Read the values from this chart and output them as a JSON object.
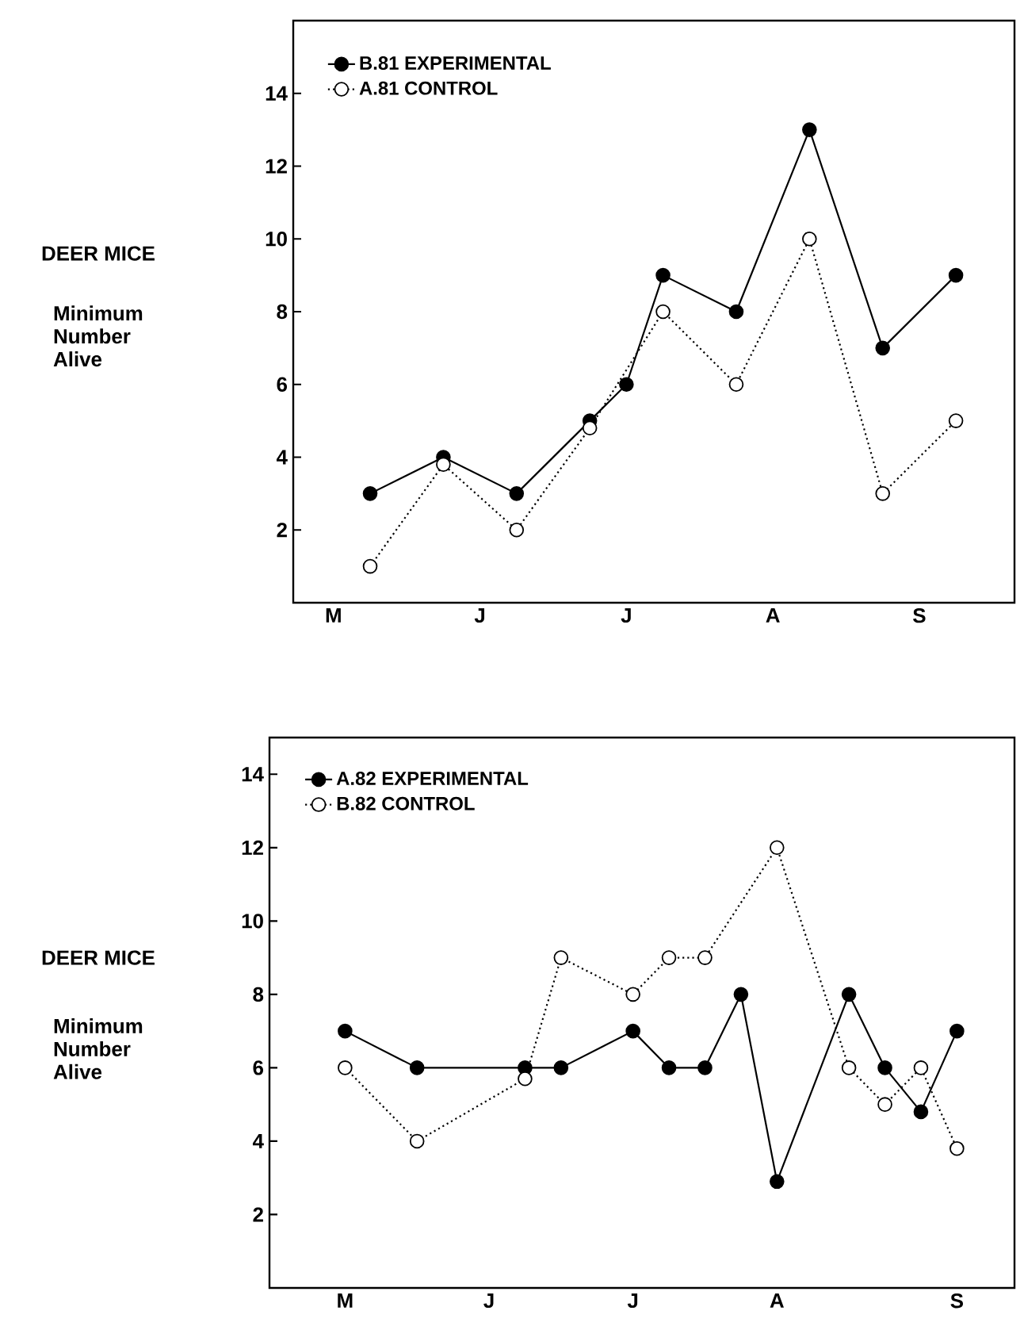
{
  "chart_data": [
    {
      "type": "line",
      "ylabel": "DEER MICE",
      "annotations": [
        "Minimum Number Alive"
      ],
      "categories": [
        null,
        "M",
        null,
        null,
        null,
        "J",
        null,
        null,
        null,
        "J",
        null,
        null,
        null,
        "A",
        null,
        null,
        null,
        "S",
        null,
        null
      ],
      "ylim": [
        0,
        16
      ],
      "yticks": [
        2,
        4,
        6,
        8,
        10,
        12,
        14
      ],
      "legend": "top left",
      "marker": "circle",
      "series": [
        {
          "name": "B.81 EXPERIMENTAL",
          "color": "#000000",
          "line_style": "solid",
          "values": [
            null,
            null,
            3,
            null,
            4,
            null,
            3,
            null,
            5,
            6,
            9,
            null,
            8,
            null,
            13,
            null,
            7,
            null,
            9,
            null
          ]
        },
        {
          "name": "A.81 CONTROL",
          "color": "#000000",
          "line_style": "dotted",
          "values": [
            null,
            null,
            1,
            null,
            3.8,
            null,
            2,
            null,
            4.8,
            null,
            8,
            null,
            6,
            null,
            10,
            null,
            3,
            null,
            5,
            null
          ]
        }
      ]
    },
    {
      "type": "line",
      "ylabel": "DEER MICE",
      "annotations": [
        "Minimum Number Alive"
      ],
      "categories": [
        null,
        null,
        "M",
        null,
        null,
        null,
        "J",
        null,
        null,
        null,
        "J",
        null,
        null,
        null,
        "A",
        null,
        null,
        null,
        null,
        "S",
        null
      ],
      "ylim": [
        0,
        15
      ],
      "yticks": [
        2,
        4,
        6,
        8,
        10,
        12,
        14
      ],
      "legend": "top left",
      "marker": "circle",
      "series": [
        {
          "name": "A.82 EXPERIMENTAL",
          "color": "#000000",
          "line_style": "solid",
          "values": [
            null,
            null,
            7,
            null,
            6,
            null,
            null,
            6,
            6,
            null,
            7,
            6,
            6,
            8,
            2.9,
            null,
            8,
            6,
            4.8,
            7,
            null
          ]
        },
        {
          "name": "B.82 CONTROL",
          "color": "#000000",
          "line_style": "dotted",
          "values": [
            null,
            null,
            6,
            null,
            4,
            null,
            null,
            5.7,
            9,
            null,
            8,
            9,
            9,
            null,
            12,
            null,
            6,
            5,
            6,
            3.8,
            null
          ]
        }
      ]
    }
  ]
}
